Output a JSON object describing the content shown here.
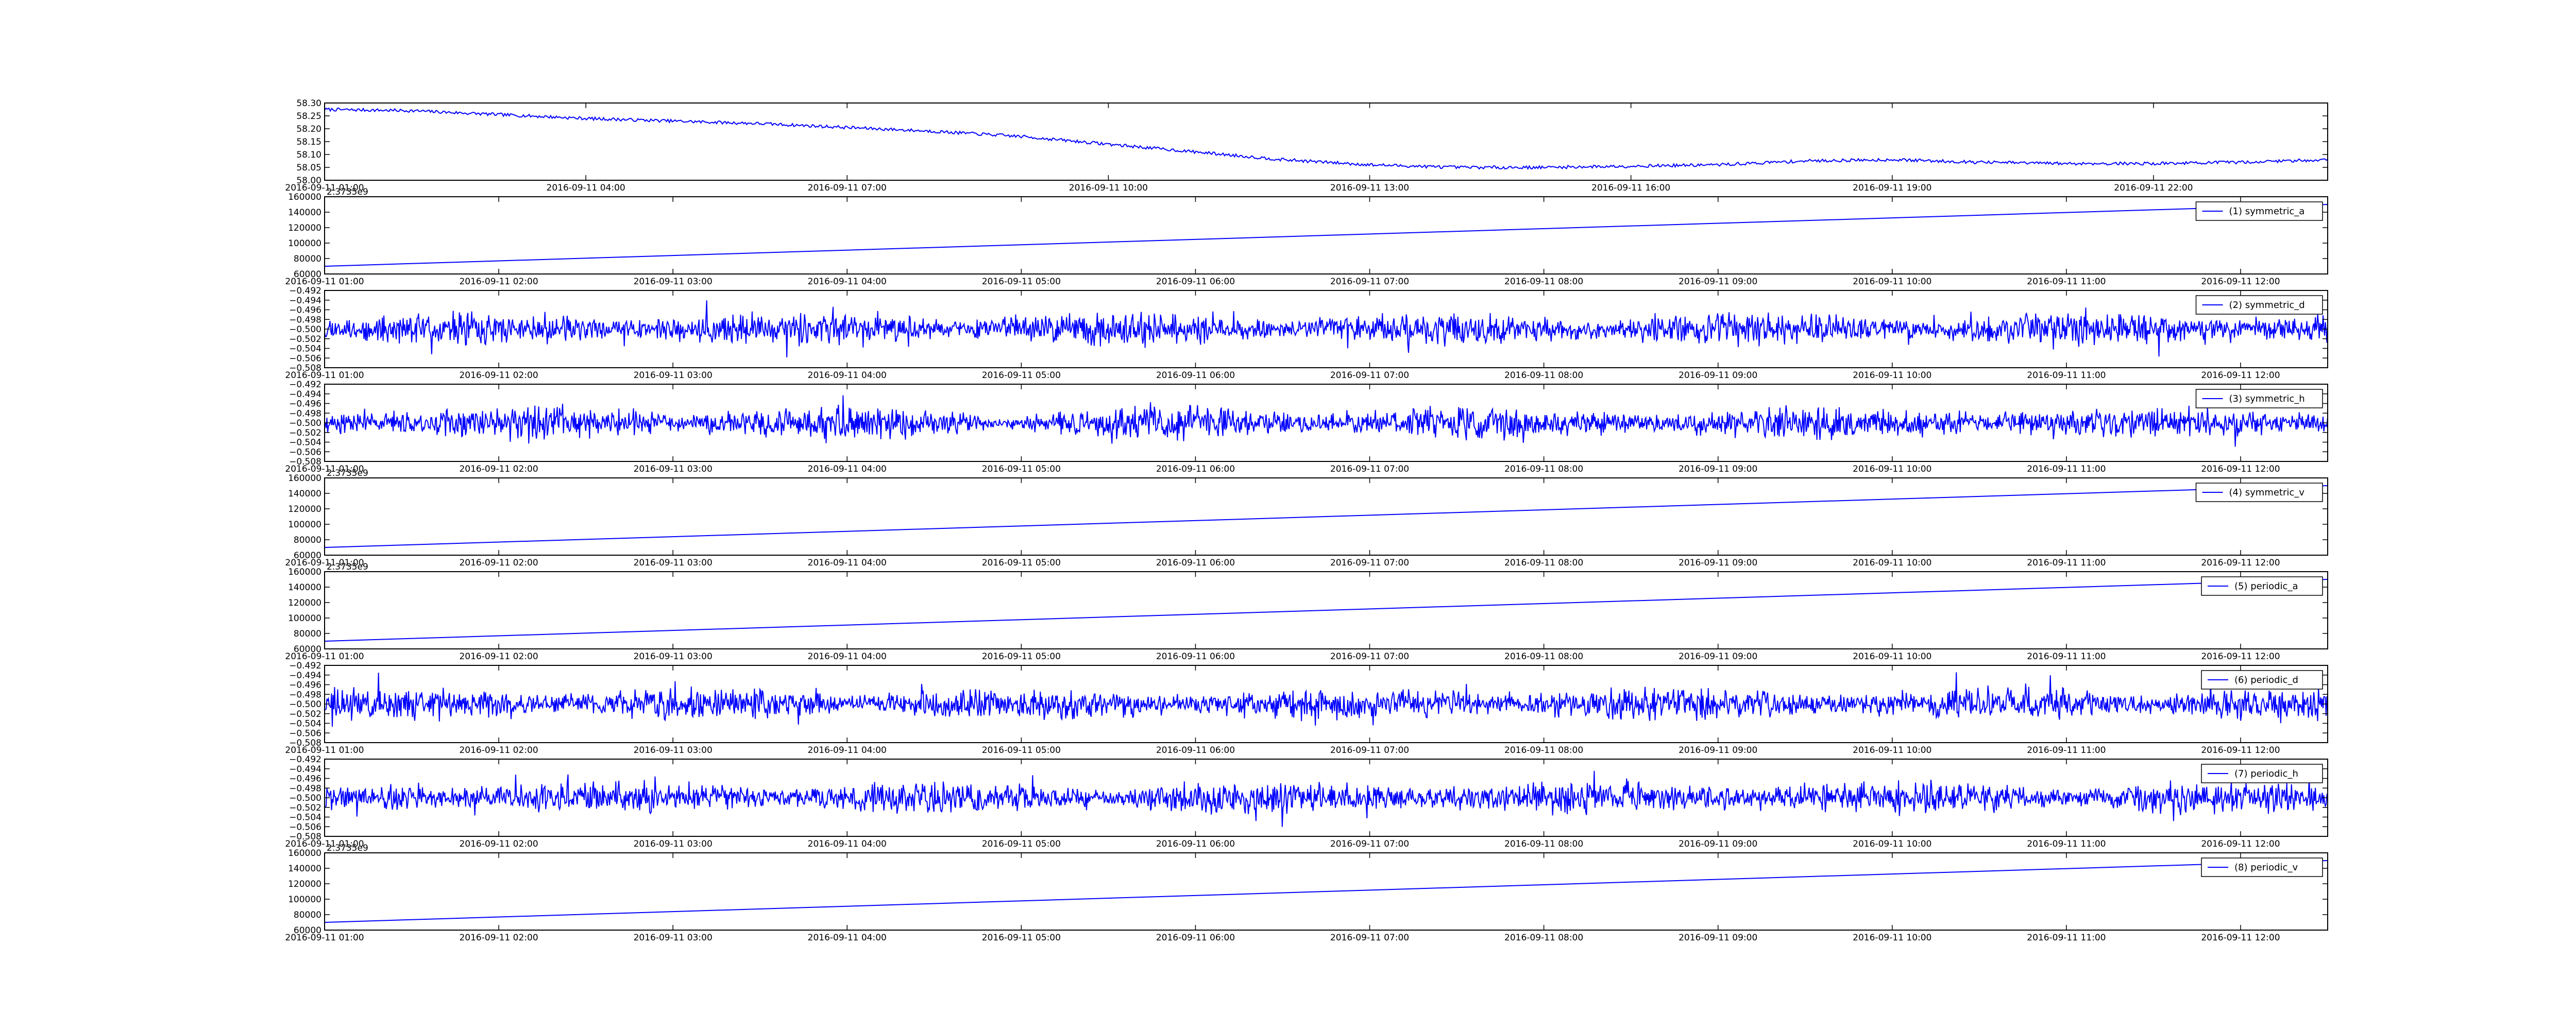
{
  "chart_data": [
    {
      "type": "line",
      "title": "",
      "xlabel": "",
      "ylabel": "",
      "ylim": [
        58.0,
        58.3
      ],
      "y_ticks": [
        "58.30",
        "58.25",
        "58.20",
        "58.15",
        "58.10",
        "58.05",
        "58.00"
      ],
      "x_ticks": [
        "2016-09-11 01:00",
        "2016-09-11 04:00",
        "2016-09-11 07:00",
        "2016-09-11 10:00",
        "2016-09-11 13:00",
        "2016-09-11 16:00",
        "2016-09-11 19:00",
        "2016-09-11 22:00"
      ],
      "x_range_hours": [
        1,
        24
      ],
      "legend": null,
      "grid": false,
      "color": "#0000ff",
      "series": [
        {
          "kind": "profile",
          "x": [
            1,
            2,
            3,
            4,
            5,
            6,
            7,
            8,
            9,
            10,
            11,
            12,
            13,
            14,
            15,
            16,
            17,
            18,
            19,
            20,
            21,
            22,
            23,
            24
          ],
          "values": [
            58.275,
            58.27,
            58.255,
            58.24,
            58.23,
            58.22,
            58.205,
            58.19,
            58.17,
            58.14,
            58.11,
            58.08,
            58.06,
            58.05,
            58.05,
            58.055,
            58.06,
            58.075,
            58.08,
            58.07,
            58.065,
            58.065,
            58.07,
            58.08
          ]
        }
      ]
    },
    {
      "type": "line",
      "label": "(1) symmetric_a",
      "x_offset_label": "2.3735e9",
      "ylim": [
        60000,
        160000
      ],
      "y_ticks": [
        "160000",
        "140000",
        "120000",
        "100000",
        "80000",
        "60000"
      ],
      "x_ticks": [
        "2016-09-11 01:00",
        "2016-09-11 02:00",
        "2016-09-11 03:00",
        "2016-09-11 04:00",
        "2016-09-11 05:00",
        "2016-09-11 06:00",
        "2016-09-11 07:00",
        "2016-09-11 08:00",
        "2016-09-11 09:00",
        "2016-09-11 10:00",
        "2016-09-11 11:00",
        "2016-09-11 12:00"
      ],
      "x_range_hours": [
        1,
        12.5
      ],
      "legend": "upper right",
      "color": "#0000ff",
      "series": [
        {
          "name": "(1) symmetric_a",
          "kind": "linear",
          "x": [
            1,
            12.5
          ],
          "values": [
            70000,
            150000
          ]
        }
      ]
    },
    {
      "type": "line",
      "label": "(2) symmetric_d",
      "ylim": [
        -0.508,
        -0.492
      ],
      "y_ticks": [
        "−0.492",
        "−0.494",
        "−0.496",
        "−0.498",
        "−0.500",
        "−0.502",
        "−0.504",
        "−0.506",
        "−0.508"
      ],
      "x_ticks": [
        "2016-09-11 01:00",
        "2016-09-11 02:00",
        "2016-09-11 03:00",
        "2016-09-11 04:00",
        "2016-09-11 05:00",
        "2016-09-11 06:00",
        "2016-09-11 07:00",
        "2016-09-11 08:00",
        "2016-09-11 09:00",
        "2016-09-11 10:00",
        "2016-09-11 11:00",
        "2016-09-11 12:00"
      ],
      "x_range_hours": [
        1,
        12.5
      ],
      "legend": "upper right",
      "color": "#0000ff",
      "series": [
        {
          "name": "(2) symmetric_d",
          "kind": "oscillation",
          "center": -0.5,
          "amplitude_range": [
            0.001,
            0.004
          ],
          "seed": 11
        }
      ]
    },
    {
      "type": "line",
      "label": "(3) symmetric_h",
      "ylim": [
        -0.508,
        -0.492
      ],
      "y_ticks": [
        "−0.492",
        "−0.494",
        "−0.496",
        "−0.498",
        "−0.500",
        "−0.502",
        "−0.504",
        "−0.506",
        "−0.508"
      ],
      "x_ticks": [
        "2016-09-11 01:00",
        "2016-09-11 02:00",
        "2016-09-11 03:00",
        "2016-09-11 04:00",
        "2016-09-11 05:00",
        "2016-09-11 06:00",
        "2016-09-11 07:00",
        "2016-09-11 08:00",
        "2016-09-11 09:00",
        "2016-09-11 10:00",
        "2016-09-11 11:00",
        "2016-09-11 12:00"
      ],
      "x_range_hours": [
        1,
        12.5
      ],
      "legend": "upper right",
      "color": "#0000ff",
      "series": [
        {
          "name": "(3) symmetric_h",
          "kind": "oscillation",
          "center": -0.5,
          "amplitude_range": [
            0.001,
            0.004
          ],
          "seed": 23
        }
      ]
    },
    {
      "type": "line",
      "label": "(4) symmetric_v",
      "x_offset_label": "2.3735e9",
      "ylim": [
        60000,
        160000
      ],
      "y_ticks": [
        "160000",
        "140000",
        "120000",
        "100000",
        "80000",
        "60000"
      ],
      "x_ticks": [
        "2016-09-11 01:00",
        "2016-09-11 02:00",
        "2016-09-11 03:00",
        "2016-09-11 04:00",
        "2016-09-11 05:00",
        "2016-09-11 06:00",
        "2016-09-11 07:00",
        "2016-09-11 08:00",
        "2016-09-11 09:00",
        "2016-09-11 10:00",
        "2016-09-11 11:00",
        "2016-09-11 12:00"
      ],
      "x_range_hours": [
        1,
        12.5
      ],
      "legend": "upper right",
      "color": "#0000ff",
      "series": [
        {
          "name": "(4) symmetric_v",
          "kind": "linear",
          "x": [
            1,
            12.5
          ],
          "values": [
            70000,
            150000
          ]
        }
      ]
    },
    {
      "type": "line",
      "label": "(5) periodic_a",
      "x_offset_label": "2.3735e9",
      "ylim": [
        60000,
        160000
      ],
      "y_ticks": [
        "160000",
        "140000",
        "120000",
        "100000",
        "80000",
        "60000"
      ],
      "x_ticks": [
        "2016-09-11 01:00",
        "2016-09-11 02:00",
        "2016-09-11 03:00",
        "2016-09-11 04:00",
        "2016-09-11 05:00",
        "2016-09-11 06:00",
        "2016-09-11 07:00",
        "2016-09-11 08:00",
        "2016-09-11 09:00",
        "2016-09-11 10:00",
        "2016-09-11 11:00",
        "2016-09-11 12:00"
      ],
      "x_range_hours": [
        1,
        12.5
      ],
      "legend": "upper right",
      "color": "#0000ff",
      "series": [
        {
          "name": "(5) periodic_a",
          "kind": "linear",
          "x": [
            1,
            12.5
          ],
          "values": [
            70000,
            150000
          ]
        }
      ]
    },
    {
      "type": "line",
      "label": "(6) periodic_d",
      "ylim": [
        -0.508,
        -0.492
      ],
      "y_ticks": [
        "−0.492",
        "−0.494",
        "−0.496",
        "−0.498",
        "−0.500",
        "−0.502",
        "−0.504",
        "−0.506",
        "−0.508"
      ],
      "x_ticks": [
        "2016-09-11 01:00",
        "2016-09-11 02:00",
        "2016-09-11 03:00",
        "2016-09-11 04:00",
        "2016-09-11 05:00",
        "2016-09-11 06:00",
        "2016-09-11 07:00",
        "2016-09-11 08:00",
        "2016-09-11 09:00",
        "2016-09-11 10:00",
        "2016-09-11 11:00",
        "2016-09-11 12:00"
      ],
      "x_range_hours": [
        1,
        12.5
      ],
      "legend": "upper right",
      "color": "#0000ff",
      "series": [
        {
          "name": "(6) periodic_d",
          "kind": "oscillation",
          "center": -0.5,
          "amplitude_range": [
            0.001,
            0.004
          ],
          "seed": 37
        }
      ]
    },
    {
      "type": "line",
      "label": "(7) periodic_h",
      "ylim": [
        -0.508,
        -0.492
      ],
      "y_ticks": [
        "−0.492",
        "−0.494",
        "−0.496",
        "−0.498",
        "−0.500",
        "−0.502",
        "−0.504",
        "−0.506",
        "−0.508"
      ],
      "x_ticks": [
        "2016-09-11 01:00",
        "2016-09-11 02:00",
        "2016-09-11 03:00",
        "2016-09-11 04:00",
        "2016-09-11 05:00",
        "2016-09-11 06:00",
        "2016-09-11 07:00",
        "2016-09-11 08:00",
        "2016-09-11 09:00",
        "2016-09-11 10:00",
        "2016-09-11 11:00",
        "2016-09-11 12:00"
      ],
      "x_range_hours": [
        1,
        12.5
      ],
      "legend": "upper right",
      "color": "#0000ff",
      "series": [
        {
          "name": "(7) periodic_h",
          "kind": "oscillation",
          "center": -0.5,
          "amplitude_range": [
            0.001,
            0.004
          ],
          "seed": 41
        }
      ]
    },
    {
      "type": "line",
      "label": "(8) periodic_v",
      "x_offset_label": "2.3735e9",
      "ylim": [
        60000,
        160000
      ],
      "y_ticks": [
        "160000",
        "140000",
        "120000",
        "100000",
        "80000",
        "60000"
      ],
      "x_ticks": [
        "2016-09-11 01:00",
        "2016-09-11 02:00",
        "2016-09-11 03:00",
        "2016-09-11 04:00",
        "2016-09-11 05:00",
        "2016-09-11 06:00",
        "2016-09-11 07:00",
        "2016-09-11 08:00",
        "2016-09-11 09:00",
        "2016-09-11 10:00",
        "2016-09-11 11:00",
        "2016-09-11 12:00"
      ],
      "x_range_hours": [
        1,
        12.5
      ],
      "legend": "upper right",
      "color": "#0000ff",
      "series": [
        {
          "name": "(8) periodic_v",
          "kind": "linear",
          "x": [
            1,
            12.5
          ],
          "values": [
            70000,
            150000
          ]
        }
      ]
    }
  ]
}
